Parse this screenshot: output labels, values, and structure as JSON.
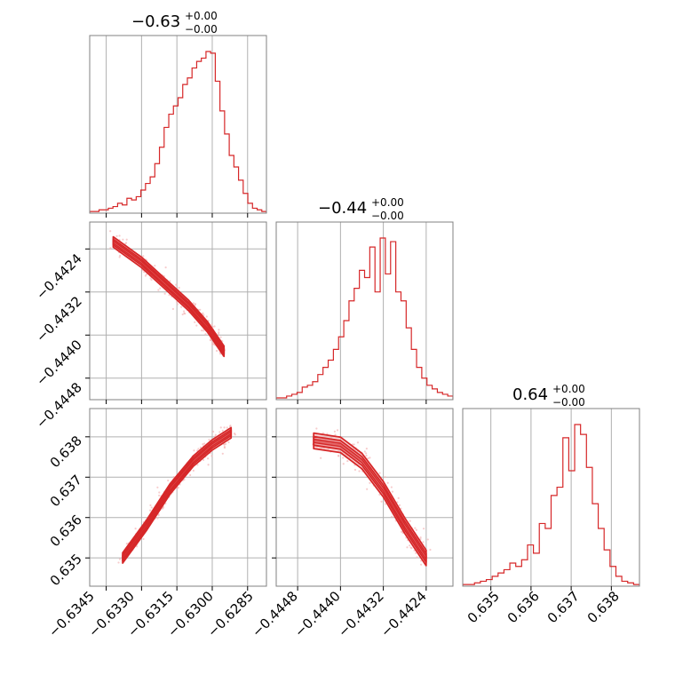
{
  "colors": {
    "main": "#d62728",
    "light": "#f4b6b8",
    "frame": "#808080",
    "grid": "#b0b0b0"
  },
  "chart_data": {
    "type": "corner",
    "parameters": [
      {
        "title_value": "−0.63",
        "title_plus": "+0.00",
        "title_minus": "−0.00",
        "range": [
          -0.6352,
          -0.6277
        ],
        "ticks": [
          -0.6345,
          -0.633,
          -0.6315,
          -0.63,
          -0.6285
        ],
        "tick_labels": [
          "−0.6345",
          "−0.6330",
          "−0.6315",
          "−0.6300",
          "−0.6285"
        ],
        "hist": {
          "bins": [
            -0.6352,
            -0.6277
          ],
          "mode": -0.63,
          "counts": [
            1,
            1,
            2,
            2,
            3,
            4,
            6,
            5,
            9,
            8,
            10,
            14,
            18,
            22,
            30,
            40,
            52,
            60,
            65,
            70,
            78,
            82,
            88,
            92,
            94,
            98,
            97,
            80,
            62,
            48,
            35,
            28,
            20,
            12,
            6,
            3,
            2,
            1
          ]
        }
      },
      {
        "title_value": "−0.44",
        "title_plus": "+0.00",
        "title_minus": "−0.00",
        "range": [
          -0.4452,
          -0.4419
        ],
        "ticks": [
          -0.4448,
          -0.444,
          -0.4432,
          -0.4424
        ],
        "tick_labels": [
          "−0.4448",
          "−0.4440",
          "−0.4432",
          "−0.4424"
        ],
        "hist": {
          "bins": [
            -0.4452,
            -0.4419
          ],
          "mode": -0.4431,
          "counts": [
            1,
            1,
            2,
            3,
            4,
            7,
            8,
            10,
            14,
            18,
            22,
            28,
            35,
            44,
            55,
            62,
            72,
            68,
            85,
            60,
            90,
            70,
            88,
            60,
            55,
            40,
            28,
            18,
            12,
            8,
            6,
            4,
            3,
            2
          ]
        }
      },
      {
        "title_value": "0.64",
        "title_plus": "+0.00",
        "title_minus": "−0.00",
        "range": [
          0.6343,
          0.6387
        ],
        "ticks": [
          0.635,
          0.636,
          0.637,
          0.638
        ],
        "tick_labels": [
          "0.635",
          "0.636",
          "0.637",
          "0.638"
        ],
        "hist": {
          "bins": [
            0.6343,
            0.6387
          ],
          "mode": 0.637,
          "counts": [
            1,
            1,
            2,
            3,
            4,
            6,
            8,
            10,
            14,
            12,
            16,
            25,
            20,
            38,
            35,
            55,
            60,
            90,
            70,
            98,
            92,
            72,
            50,
            35,
            22,
            12,
            6,
            3,
            2,
            1
          ]
        }
      }
    ],
    "y_tick_labels": {
      "row1": [
        "−0.4424",
        "−0.4432",
        "−0.4440",
        "−0.4448"
      ],
      "row2": [
        "0.638",
        "0.637",
        "0.636",
        "0.635"
      ]
    },
    "pairs": [
      {
        "x": 0,
        "y": 1,
        "ridge": [
          [
            -0.6342,
            -0.44227
          ],
          [
            -0.633,
            -0.44265
          ],
          [
            -0.632,
            -0.44305
          ],
          [
            -0.631,
            -0.44345
          ],
          [
            -0.6302,
            -0.44385
          ],
          [
            -0.6295,
            -0.4443
          ]
        ],
        "width": 6e-05
      },
      {
        "x": 0,
        "y": 2,
        "ridge": [
          [
            -0.6338,
            0.635
          ],
          [
            -0.6328,
            0.6358
          ],
          [
            -0.6318,
            0.6367
          ],
          [
            -0.6308,
            0.6374
          ],
          [
            -0.63,
            0.6378
          ],
          [
            -0.6292,
            0.6381
          ]
        ],
        "width": 8e-05
      },
      {
        "x": 1,
        "y": 2,
        "ridge": [
          [
            -0.4445,
            0.6379
          ],
          [
            -0.444,
            0.6378
          ],
          [
            -0.4436,
            0.6374
          ],
          [
            -0.4432,
            0.6367
          ],
          [
            -0.4428,
            0.6358
          ],
          [
            -0.4424,
            0.635
          ]
        ],
        "width": 0.00012
      }
    ],
    "grid": true
  }
}
